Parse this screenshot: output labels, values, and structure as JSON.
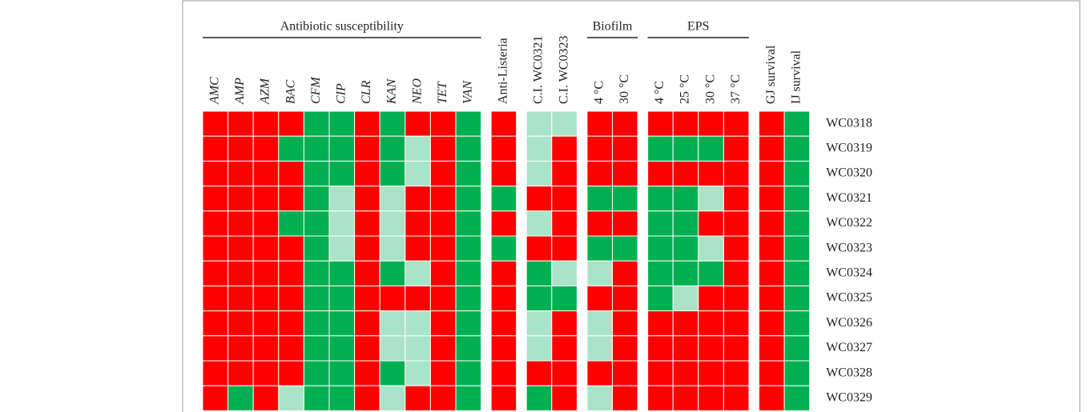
{
  "chart_data": {
    "type": "heatmap",
    "groups": [
      {
        "label": "Antibiotic susceptibility",
        "italic": true,
        "columns": [
          "AMC",
          "AMP",
          "AZM",
          "BAC",
          "CFM",
          "CIP",
          "CLR",
          "KAN",
          "NEO",
          "TET",
          "VAN"
        ]
      },
      {
        "columns": [
          "Anti-Listeria"
        ]
      },
      {
        "columns": [
          "C.I. WC0321",
          "C.I. WC0323"
        ]
      },
      {
        "label": "Biofilm",
        "columns": [
          "4 °C",
          "30 °C"
        ]
      },
      {
        "label": "EPS",
        "columns": [
          "4 °C",
          "25 °C",
          "30 °C",
          "37 °C"
        ]
      },
      {
        "columns": [
          "GJ survival",
          "IJ survival"
        ]
      }
    ],
    "rows": [
      "WC0318",
      "WC0319",
      "WC0320",
      "WC0321",
      "WC0322",
      "WC0323",
      "WC0324",
      "WC0325",
      "WC0326",
      "WC0327",
      "WC0328",
      "WC0329"
    ],
    "cells": [
      [
        "#ff0000",
        "#ff0000",
        "#ff0000",
        "#ff0000",
        "#00b050",
        "#00b050",
        "#ff0000",
        "#00b050",
        "#ff0000",
        "#ff0000",
        "#00b050",
        "#ff0000",
        "#a9e4c8",
        "#a9e4c8",
        "#ff0000",
        "#ff0000",
        "#ff0000",
        "#ff0000",
        "#ff0000",
        "#ff0000",
        "#ff0000",
        "#00b050"
      ],
      [
        "#ff0000",
        "#ff0000",
        "#ff0000",
        "#00b050",
        "#00b050",
        "#00b050",
        "#ff0000",
        "#00b050",
        "#a9e4c8",
        "#ff0000",
        "#00b050",
        "#ff0000",
        "#a9e4c8",
        "#ff0000",
        "#ff0000",
        "#ff0000",
        "#00b050",
        "#00b050",
        "#00b050",
        "#ff0000",
        "#ff0000",
        "#00b050"
      ],
      [
        "#ff0000",
        "#ff0000",
        "#ff0000",
        "#ff0000",
        "#00b050",
        "#00b050",
        "#ff0000",
        "#00b050",
        "#a9e4c8",
        "#ff0000",
        "#00b050",
        "#ff0000",
        "#a9e4c8",
        "#ff0000",
        "#ff0000",
        "#ff0000",
        "#ff0000",
        "#ff0000",
        "#ff0000",
        "#ff0000",
        "#ff0000",
        "#00b050"
      ],
      [
        "#ff0000",
        "#ff0000",
        "#ff0000",
        "#ff0000",
        "#00b050",
        "#a9e4c8",
        "#ff0000",
        "#a9e4c8",
        "#ff0000",
        "#ff0000",
        "#00b050",
        "#00b050",
        "#ff0000",
        "#ff0000",
        "#00b050",
        "#00b050",
        "#00b050",
        "#00b050",
        "#a9e4c8",
        "#ff0000",
        "#ff0000",
        "#00b050"
      ],
      [
        "#ff0000",
        "#ff0000",
        "#ff0000",
        "#00b050",
        "#00b050",
        "#a9e4c8",
        "#ff0000",
        "#a9e4c8",
        "#ff0000",
        "#ff0000",
        "#00b050",
        "#ff0000",
        "#a9e4c8",
        "#ff0000",
        "#ff0000",
        "#ff0000",
        "#00b050",
        "#00b050",
        "#ff0000",
        "#ff0000",
        "#ff0000",
        "#00b050"
      ],
      [
        "#ff0000",
        "#ff0000",
        "#ff0000",
        "#ff0000",
        "#00b050",
        "#a9e4c8",
        "#ff0000",
        "#a9e4c8",
        "#ff0000",
        "#ff0000",
        "#00b050",
        "#00b050",
        "#ff0000",
        "#ff0000",
        "#00b050",
        "#00b050",
        "#00b050",
        "#00b050",
        "#a9e4c8",
        "#ff0000",
        "#ff0000",
        "#00b050"
      ],
      [
        "#ff0000",
        "#ff0000",
        "#ff0000",
        "#ff0000",
        "#00b050",
        "#00b050",
        "#ff0000",
        "#00b050",
        "#a9e4c8",
        "#ff0000",
        "#00b050",
        "#ff0000",
        "#00b050",
        "#a9e4c8",
        "#a9e4c8",
        "#ff0000",
        "#00b050",
        "#00b050",
        "#00b050",
        "#ff0000",
        "#ff0000",
        "#00b050"
      ],
      [
        "#ff0000",
        "#ff0000",
        "#ff0000",
        "#ff0000",
        "#00b050",
        "#00b050",
        "#ff0000",
        "#ff0000",
        "#ff0000",
        "#ff0000",
        "#00b050",
        "#ff0000",
        "#00b050",
        "#00b050",
        "#ff0000",
        "#ff0000",
        "#00b050",
        "#a9e4c8",
        "#ff0000",
        "#ff0000",
        "#ff0000",
        "#00b050"
      ],
      [
        "#ff0000",
        "#ff0000",
        "#ff0000",
        "#ff0000",
        "#00b050",
        "#00b050",
        "#ff0000",
        "#a9e4c8",
        "#a9e4c8",
        "#ff0000",
        "#00b050",
        "#ff0000",
        "#a9e4c8",
        "#ff0000",
        "#a9e4c8",
        "#ff0000",
        "#ff0000",
        "#ff0000",
        "#ff0000",
        "#ff0000",
        "#ff0000",
        "#00b050"
      ],
      [
        "#ff0000",
        "#ff0000",
        "#ff0000",
        "#ff0000",
        "#00b050",
        "#00b050",
        "#ff0000",
        "#a9e4c8",
        "#a9e4c8",
        "#ff0000",
        "#00b050",
        "#ff0000",
        "#a9e4c8",
        "#ff0000",
        "#a9e4c8",
        "#ff0000",
        "#ff0000",
        "#ff0000",
        "#ff0000",
        "#ff0000",
        "#ff0000",
        "#00b050"
      ],
      [
        "#ff0000",
        "#ff0000",
        "#ff0000",
        "#ff0000",
        "#00b050",
        "#00b050",
        "#ff0000",
        "#00b050",
        "#a9e4c8",
        "#ff0000",
        "#00b050",
        "#ff0000",
        "#ff0000",
        "#ff0000",
        "#ff0000",
        "#ff0000",
        "#ff0000",
        "#ff0000",
        "#ff0000",
        "#ff0000",
        "#ff0000",
        "#00b050"
      ],
      [
        "#ff0000",
        "#00b050",
        "#ff0000",
        "#a9e4c8",
        "#00b050",
        "#00b050",
        "#ff0000",
        "#a9e4c8",
        "#ff0000",
        "#ff0000",
        "#00b050",
        "#ff0000",
        "#00b050",
        "#ff0000",
        "#a9e4c8",
        "#ff0000",
        "#ff0000",
        "#ff0000",
        "#ff0000",
        "#ff0000",
        "#ff0000",
        "#00b050"
      ]
    ]
  }
}
